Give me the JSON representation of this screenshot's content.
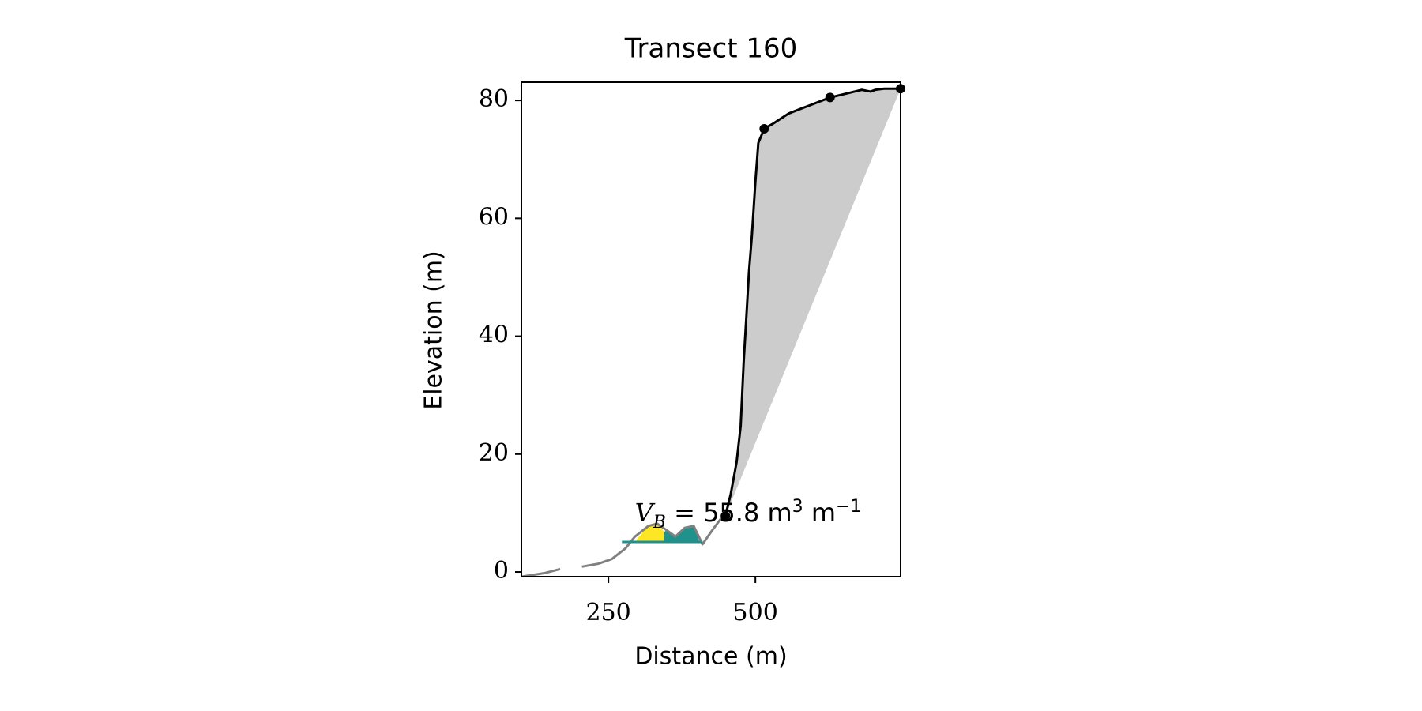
{
  "chart_data": {
    "type": "profile",
    "title": "Transect 160",
    "xlabel": "Distance (m)",
    "ylabel": "Elevation (m)",
    "xlim": [
      102,
      747
    ],
    "ylim": [
      -0.8,
      83.1
    ],
    "xticks": [
      250,
      500
    ],
    "yticks": [
      0,
      20,
      40,
      60,
      80
    ],
    "series": [
      {
        "color": "#808080",
        "x": [
          102,
          141,
          168,
          null,
          205,
          233,
          256,
          279,
          295,
          318,
          333,
          349,
          364,
          380,
          395,
          410,
          426,
          441,
          449
        ],
        "values": [
          -0.8,
          -0.2,
          0.5,
          null,
          0.9,
          1.4,
          2.2,
          4,
          6,
          7.8,
          8.2,
          7.1,
          6,
          7.5,
          7.8,
          4.7,
          7,
          9,
          9.5
        ]
      },
      {
        "color": "#21918c",
        "x": [
          273,
          410
        ],
        "values": [
          5.1,
          5.1
        ]
      },
      {
        "color": "#000000",
        "x": [
          449,
          458,
          468,
          475,
          480,
          485,
          489,
          494,
          500,
          505,
          515,
          529,
          557,
          588,
          627,
          681,
          696,
          704,
          719,
          747
        ],
        "values": [
          9.5,
          13.2,
          18.6,
          24.8,
          35.5,
          43.9,
          50.8,
          57,
          66.2,
          72.8,
          75.2,
          76,
          77.8,
          79,
          80.5,
          81.8,
          81.5,
          81.8,
          82,
          82
        ],
        "fill_color": "#cccccc"
      }
    ],
    "fills": [
      {
        "color": "#fde725",
        "x": [
          298,
          318,
          333,
          345
        ],
        "values": [
          5.5,
          7.8,
          8.2,
          6.8
        ]
      },
      {
        "color": "#21918c",
        "x": [
          345,
          349,
          364,
          380,
          395,
          405
        ],
        "values": [
          6.8,
          7.1,
          6,
          7.5,
          7.8,
          5.1
        ]
      }
    ],
    "points": {
      "color": "#000000",
      "x": [
        449,
        515,
        627,
        747
      ],
      "values": [
        9.5,
        75.2,
        80.5,
        82
      ]
    },
    "annotation": {
      "x": 295,
      "y": 8.6,
      "var": "V",
      "sub": "B",
      "text": " = 55.8 m",
      "sup": "3",
      "text2": " m",
      "sup2": "−1"
    }
  }
}
